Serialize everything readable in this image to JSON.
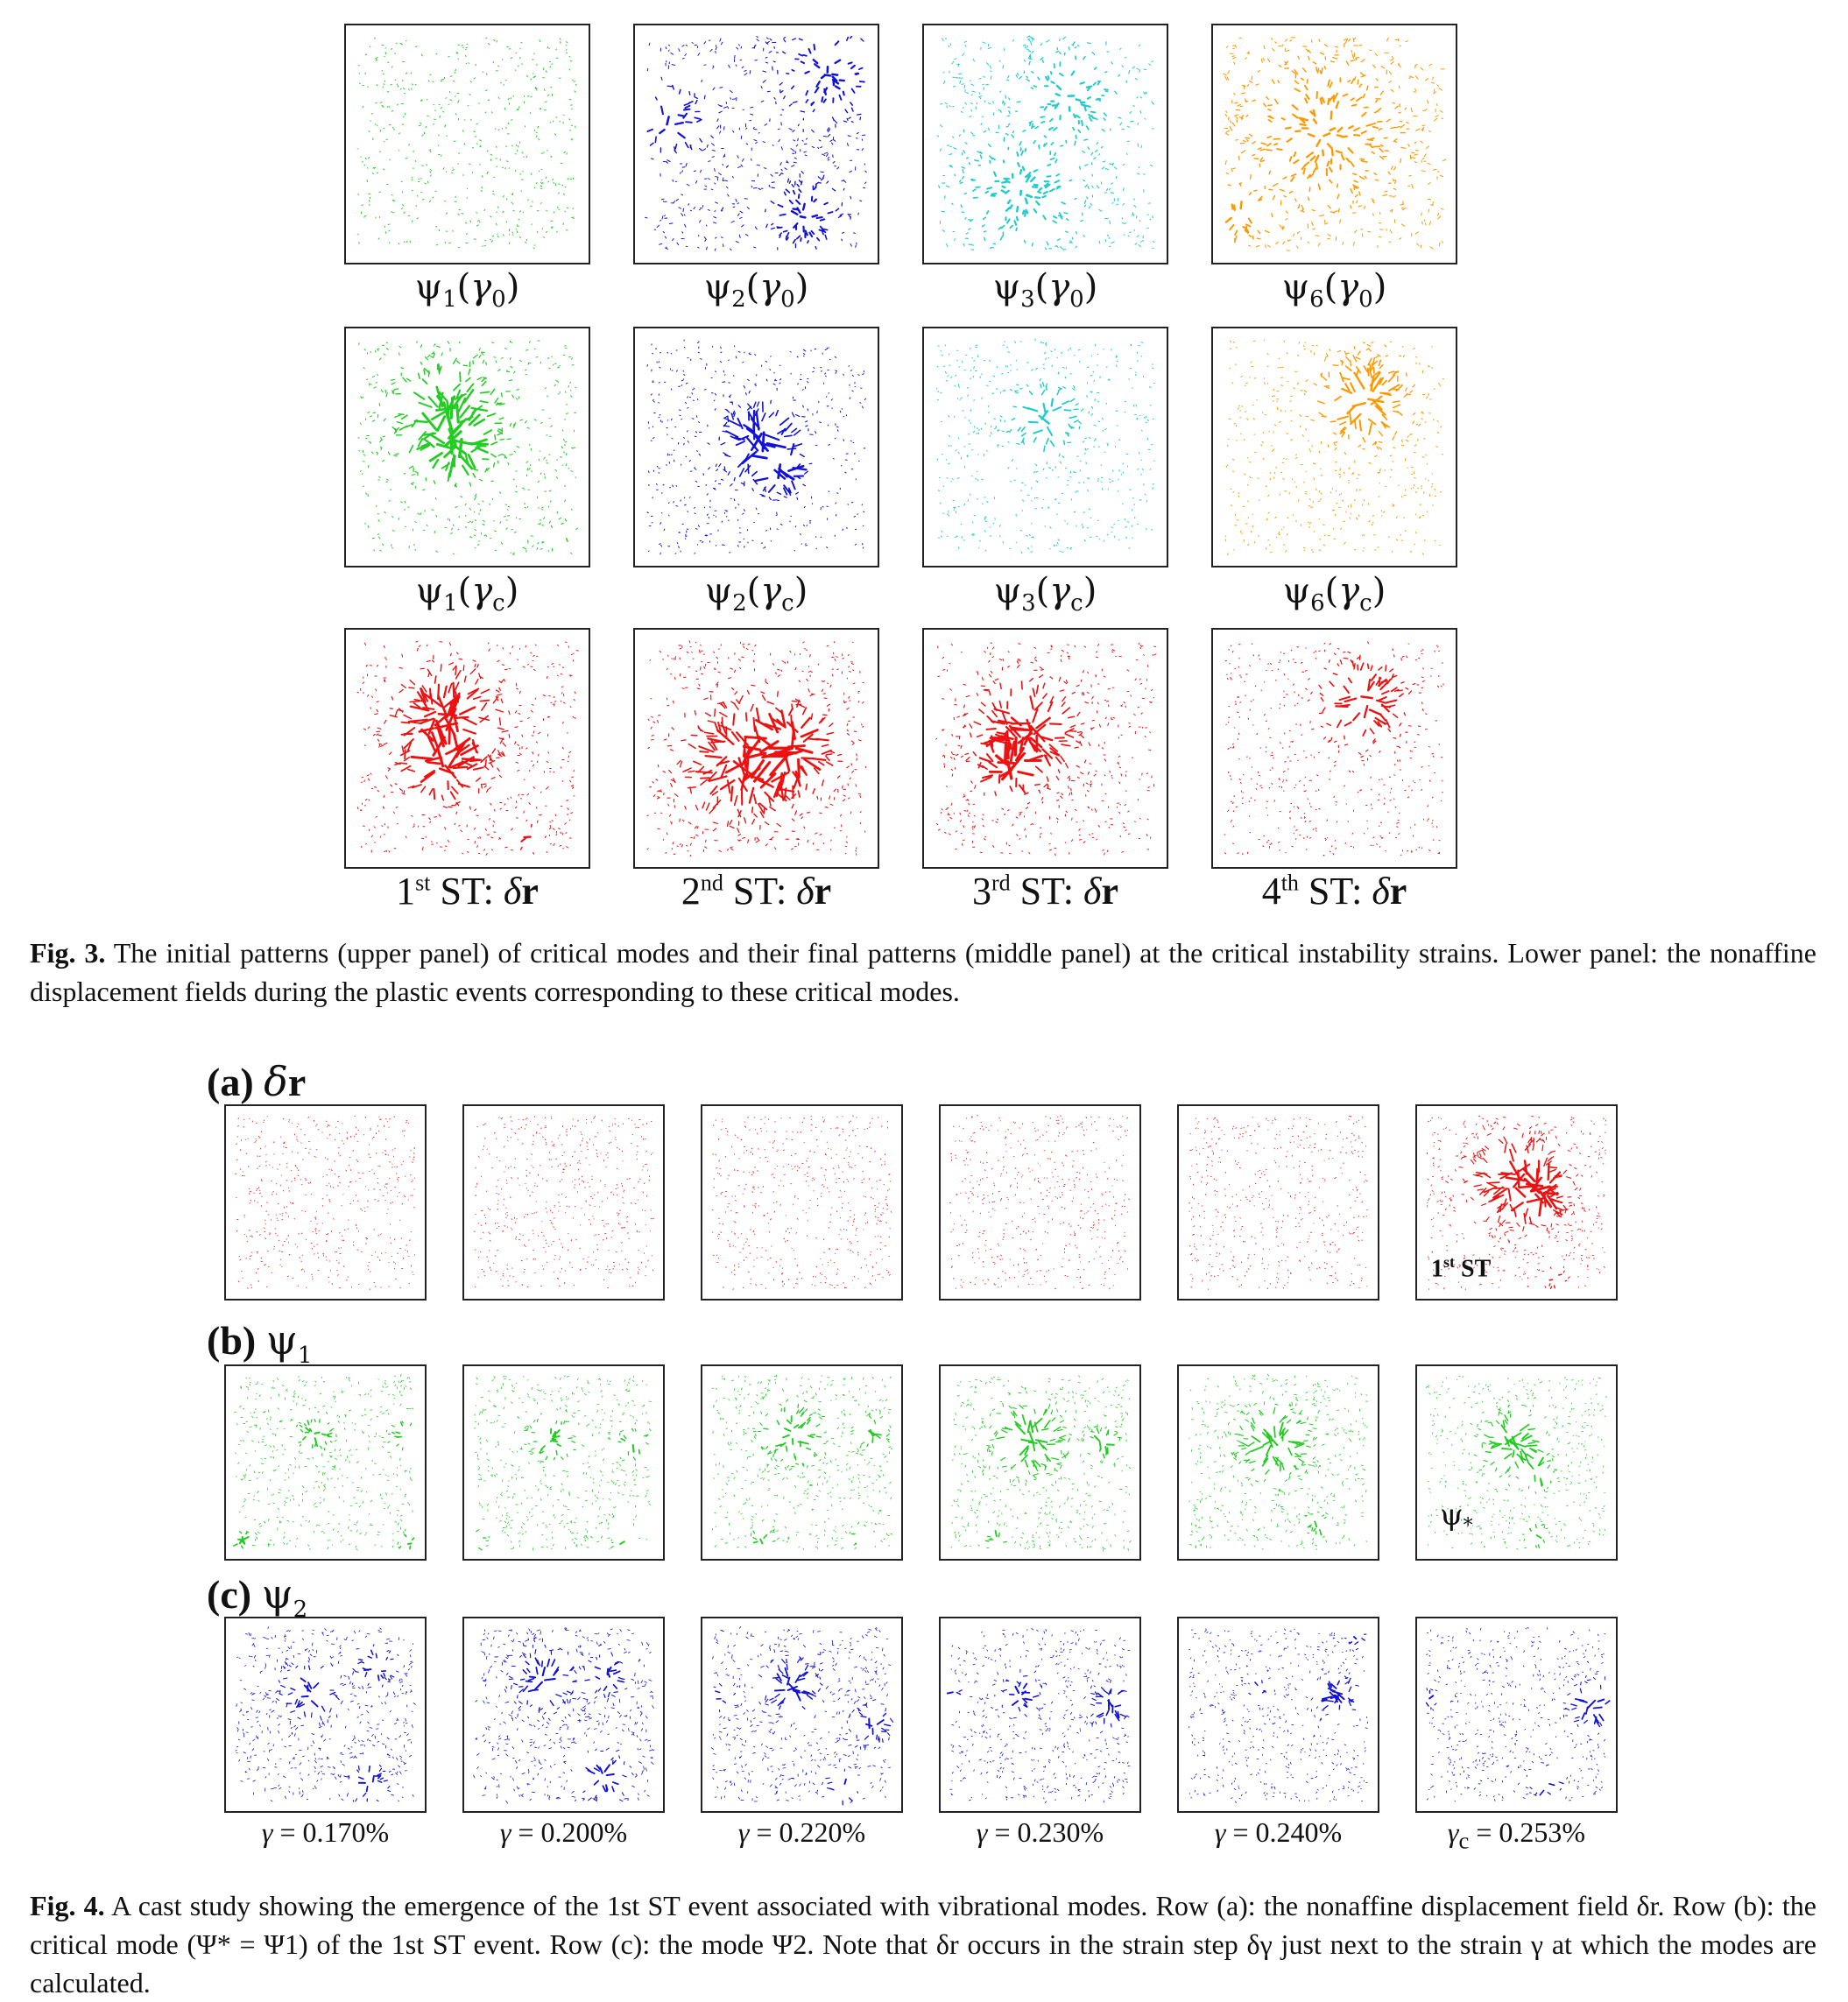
{
  "fig3": {
    "mode_labels_upper": [
      {
        "sym": "ψ",
        "idx": "1",
        "arg": "γ",
        "argidx": "0"
      },
      {
        "sym": "ψ",
        "idx": "2",
        "arg": "γ",
        "argidx": "0"
      },
      {
        "sym": "ψ",
        "idx": "3",
        "arg": "γ",
        "argidx": "0"
      },
      {
        "sym": "ψ",
        "idx": "6",
        "arg": "γ",
        "argidx": "0"
      }
    ],
    "mode_labels_middle": [
      {
        "sym": "ψ",
        "idx": "1",
        "arg": "γ",
        "argidx": "c"
      },
      {
        "sym": "ψ",
        "idx": "2",
        "arg": "γ",
        "argidx": "c"
      },
      {
        "sym": "ψ",
        "idx": "3",
        "arg": "γ",
        "argidx": "c"
      },
      {
        "sym": "ψ",
        "idx": "6",
        "arg": "γ",
        "argidx": "c"
      }
    ],
    "st_labels": [
      {
        "num": "1",
        "sup": "st",
        "text": " ST: ",
        "var": "δ",
        "bold": "r"
      },
      {
        "num": "2",
        "sup": "nd",
        "text": " ST: ",
        "var": "δ",
        "bold": "r"
      },
      {
        "num": "3",
        "sup": "rd",
        "text": " ST: ",
        "var": "δ",
        "bold": "r"
      },
      {
        "num": "4",
        "sup": "th",
        "text": " ST: ",
        "var": "δ",
        "bold": "r"
      }
    ],
    "caption_label": "Fig. 3.",
    "caption_text": " The initial patterns (upper panel) of critical modes and their final patterns (middle panel) at the critical instability strains. Lower panel: the nonaffine displacement fields during the plastic events corresponding to these critical modes.",
    "colors": {
      "mode1": "#22cc22",
      "mode2": "#1111dd",
      "mode3": "#22cccc",
      "mode6": "#ff9900",
      "dr": "#ee1111"
    }
  },
  "fig4": {
    "row_a": {
      "tag": "(a)",
      "sym": "δ",
      "bold": "r"
    },
    "row_b": {
      "tag": "(b)",
      "sym": "ψ",
      "idx": "1"
    },
    "row_c": {
      "tag": "(c)",
      "sym": "ψ",
      "idx": "2"
    },
    "inset_a": {
      "num": "1",
      "sup": "st",
      "text": " ST"
    },
    "inset_b": {
      "sym": "ψ",
      "idx": "*"
    },
    "gamma_labels": [
      {
        "var": "γ",
        "sub": "",
        "value": " = 0.170%"
      },
      {
        "var": "γ",
        "sub": "",
        "value": " = 0.200%"
      },
      {
        "var": "γ",
        "sub": "",
        "value": " = 0.220%"
      },
      {
        "var": "γ",
        "sub": "",
        "value": " = 0.230%"
      },
      {
        "var": "γ",
        "sub": "",
        "value": " = 0.240%"
      },
      {
        "var": "γ",
        "sub": "c",
        "value": " = 0.253%"
      }
    ],
    "caption_label": "Fig. 4.",
    "caption_text": " A cast study showing the emergence of the 1st ST event associated with vibrational modes. Row (a): the nonaffine displacement field δr. Row (b): the critical mode (Ψ* = Ψ1) of the 1st ST event. Row (c): the mode Ψ2. Note that δr occurs in the strain step δγ just next to the strain γ at which the modes are calculated."
  }
}
